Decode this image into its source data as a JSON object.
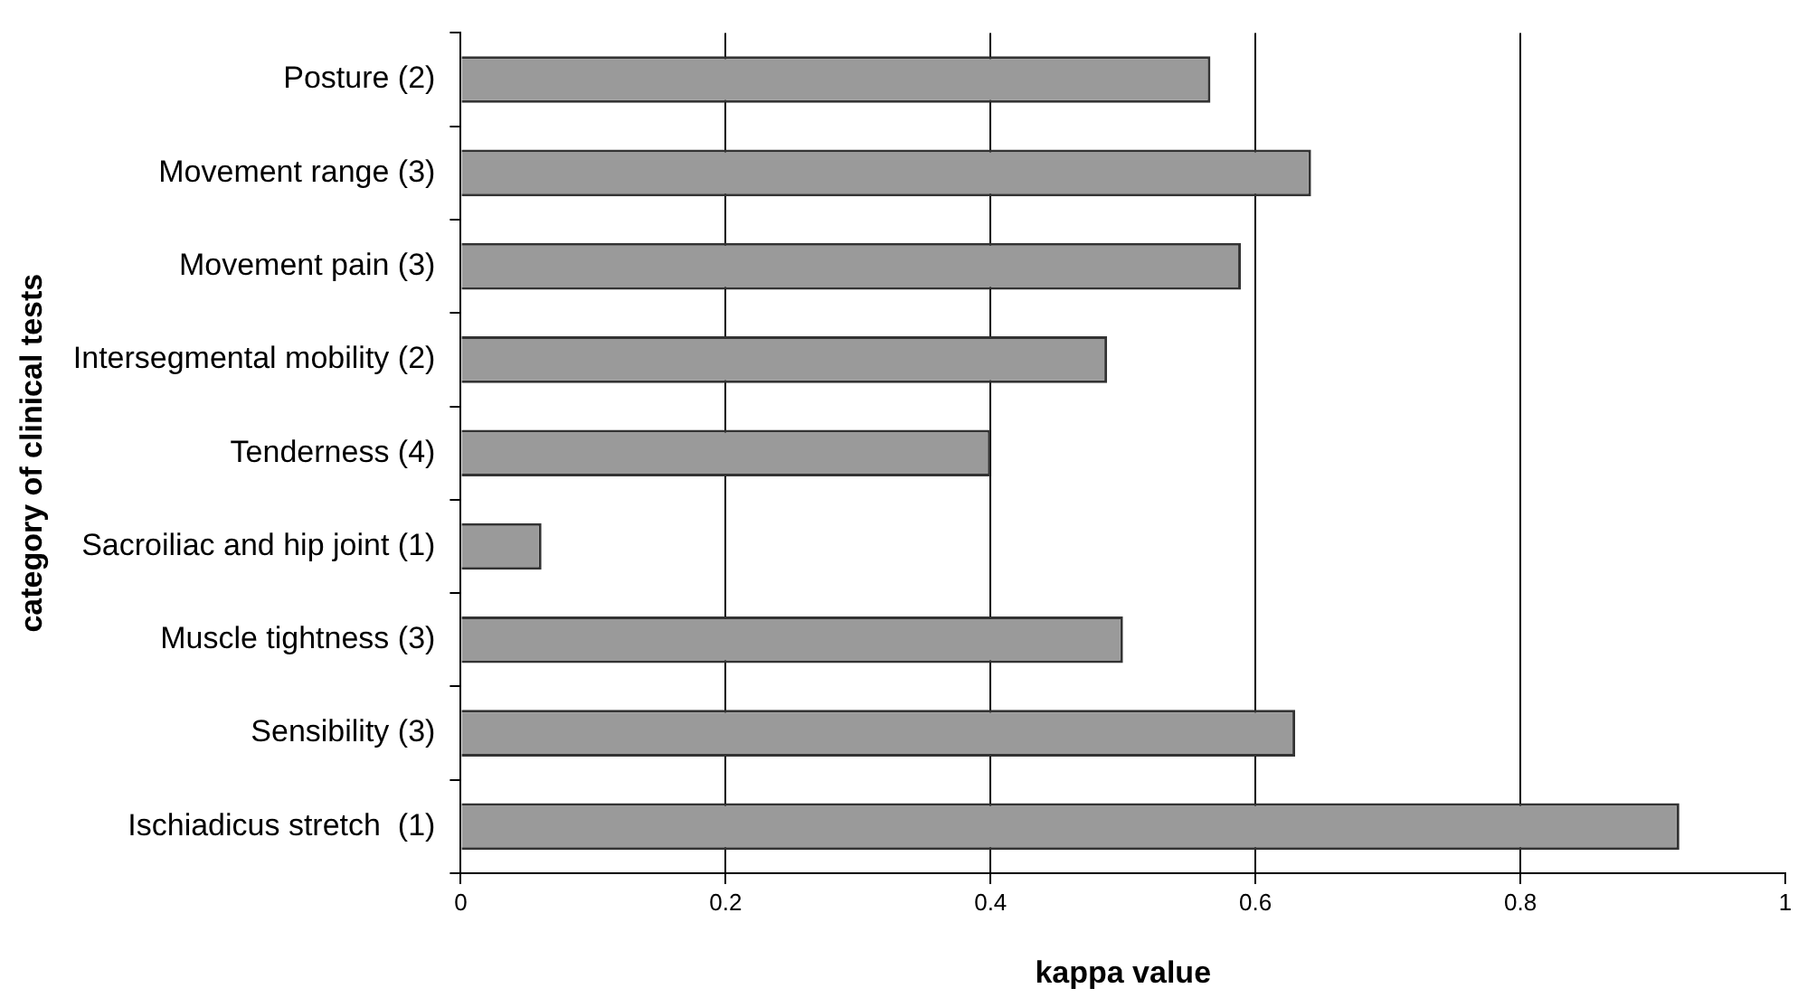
{
  "chart_data": {
    "type": "bar",
    "orientation": "horizontal",
    "xlabel": "kappa value",
    "ylabel": "category of clinical tests",
    "categories": [
      "Posture (2)",
      "Movement range (3)",
      "Movement pain (3)",
      "Intersegmental mobility (2)",
      "Tenderness (4)",
      "Sacroiliac and hip joint (1)",
      "Muscle tightness (3)",
      "Sensibility (3)",
      "Ischiadicus stretch  (1)"
    ],
    "values": [
      0.566,
      0.642,
      0.589,
      0.488,
      0.4,
      0.061,
      0.5,
      0.63,
      0.92
    ],
    "color": "#9a9a9a",
    "xlim": [
      0,
      1
    ],
    "xticks": [
      0,
      0.2,
      0.4,
      0.6,
      0.8,
      1
    ],
    "grid": "x",
    "legend": false
  }
}
